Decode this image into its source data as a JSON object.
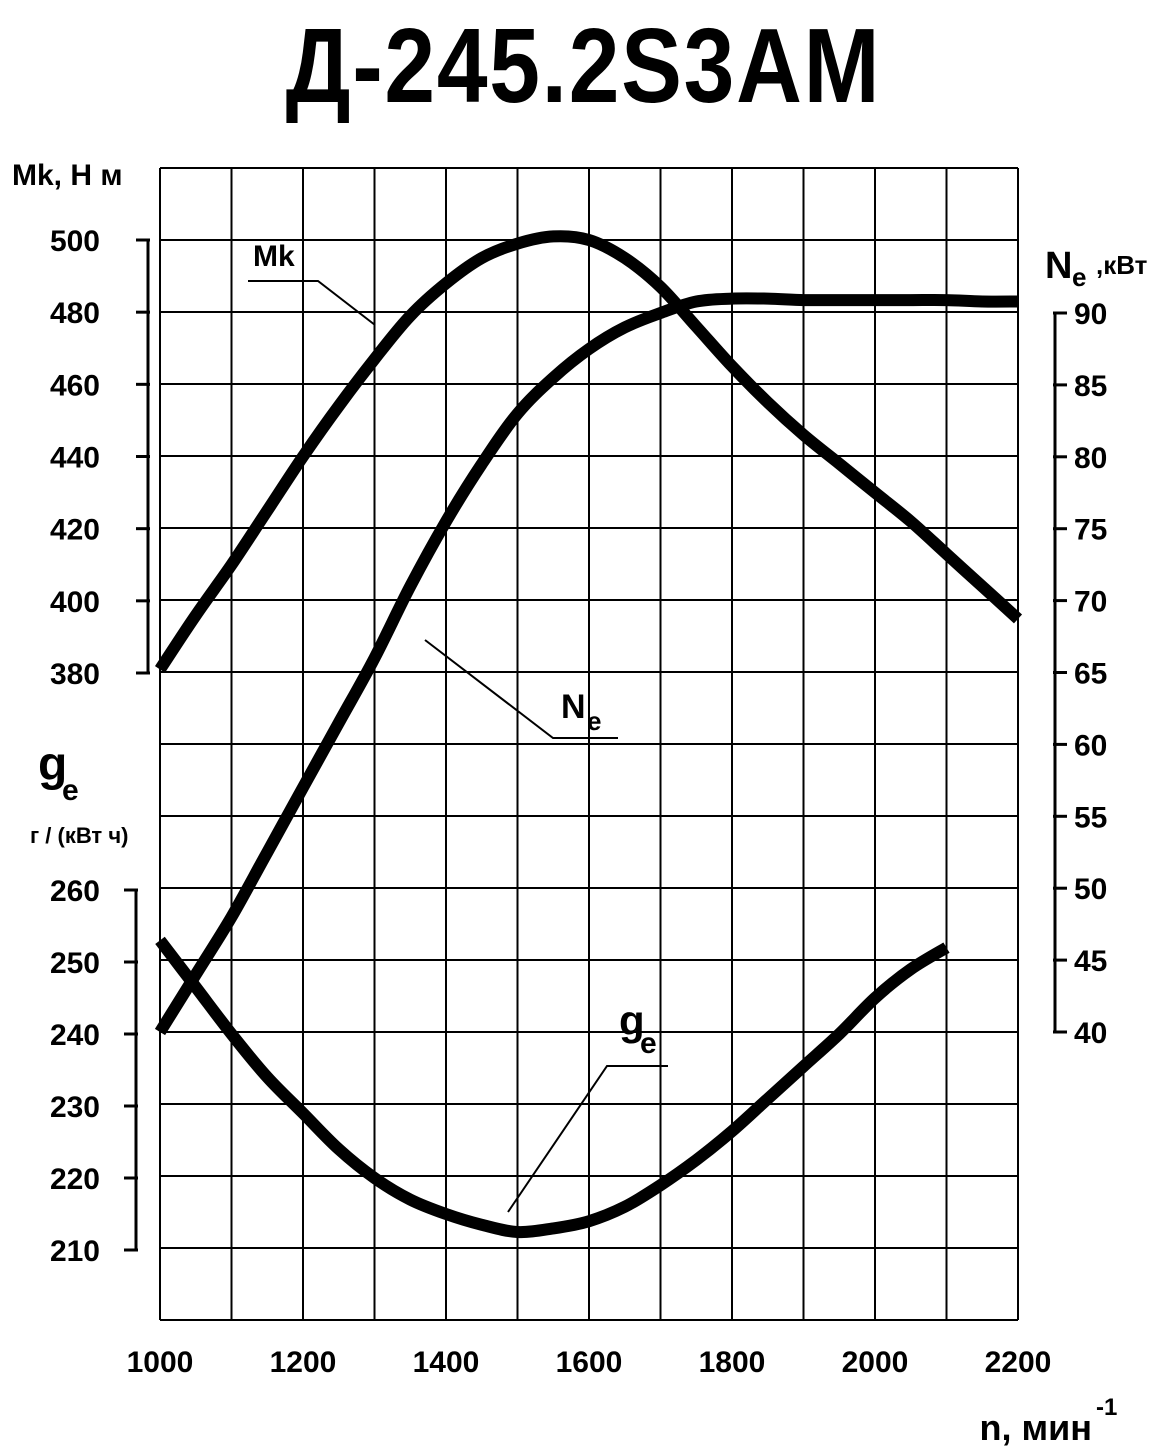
{
  "chart_data": {
    "type": "line",
    "title": "Д-245.2S3АМ",
    "x": {
      "label": "n, мин",
      "label_sup": "-1",
      "ticks": [
        1000,
        1200,
        1400,
        1600,
        1800,
        2000,
        2200
      ],
      "range": [
        1000,
        2200
      ]
    },
    "axes": {
      "torque": {
        "label": "Mk, Н м",
        "ticks": [
          380,
          400,
          420,
          440,
          460,
          480,
          500
        ],
        "range": [
          380,
          500
        ]
      },
      "power": {
        "label_main": "N",
        "label_sub": "e",
        "label_unit": ",кВт",
        "ticks": [
          40,
          45,
          50,
          55,
          60,
          65,
          70,
          75,
          80,
          85,
          90
        ],
        "range": [
          40,
          90
        ]
      },
      "consumption": {
        "label_main": "g",
        "label_sub": "e",
        "label_unit": "г / (кВт ч)",
        "ticks": [
          210,
          220,
          230,
          240,
          250,
          260
        ],
        "range": [
          210,
          260
        ]
      }
    },
    "series": [
      {
        "name": "Mk",
        "axis": "torque",
        "label": {
          "main": "Mk",
          "sub": ""
        },
        "points": [
          [
            1000,
            381
          ],
          [
            1050,
            396
          ],
          [
            1100,
            410
          ],
          [
            1150,
            425
          ],
          [
            1200,
            440
          ],
          [
            1250,
            454
          ],
          [
            1300,
            467
          ],
          [
            1350,
            479
          ],
          [
            1400,
            488
          ],
          [
            1450,
            495
          ],
          [
            1500,
            499
          ],
          [
            1550,
            501
          ],
          [
            1600,
            500
          ],
          [
            1650,
            495
          ],
          [
            1700,
            487
          ],
          [
            1750,
            476
          ],
          [
            1800,
            465
          ],
          [
            1850,
            455
          ],
          [
            1900,
            446
          ],
          [
            1950,
            438
          ],
          [
            2000,
            430
          ],
          [
            2050,
            422
          ],
          [
            2100,
            413
          ],
          [
            2150,
            404
          ],
          [
            2200,
            395
          ]
        ]
      },
      {
        "name": "Ne",
        "axis": "power",
        "label": {
          "main": "N",
          "sub": "e"
        },
        "points": [
          [
            1000,
            40
          ],
          [
            1050,
            44
          ],
          [
            1100,
            48
          ],
          [
            1150,
            52.5
          ],
          [
            1200,
            57
          ],
          [
            1250,
            61.5
          ],
          [
            1300,
            66
          ],
          [
            1350,
            71
          ],
          [
            1400,
            75.5
          ],
          [
            1450,
            79.5
          ],
          [
            1500,
            83
          ],
          [
            1550,
            85.5
          ],
          [
            1600,
            87.5
          ],
          [
            1650,
            89
          ],
          [
            1700,
            90
          ],
          [
            1750,
            90.8
          ],
          [
            1800,
            91
          ],
          [
            1850,
            91
          ],
          [
            1900,
            90.9
          ],
          [
            1950,
            90.9
          ],
          [
            2000,
            90.9
          ],
          [
            2050,
            90.9
          ],
          [
            2100,
            90.9
          ],
          [
            2150,
            90.8
          ],
          [
            2200,
            90.8
          ]
        ]
      },
      {
        "name": "ge",
        "axis": "consumption",
        "label": {
          "main": "g",
          "sub": "e"
        },
        "points": [
          [
            1000,
            253
          ],
          [
            1050,
            246.5
          ],
          [
            1100,
            240
          ],
          [
            1150,
            234
          ],
          [
            1200,
            229
          ],
          [
            1250,
            224
          ],
          [
            1300,
            220
          ],
          [
            1350,
            217
          ],
          [
            1400,
            215
          ],
          [
            1450,
            213.5
          ],
          [
            1500,
            212.5
          ],
          [
            1550,
            213
          ],
          [
            1600,
            214
          ],
          [
            1650,
            216
          ],
          [
            1700,
            219
          ],
          [
            1750,
            222.5
          ],
          [
            1800,
            226.5
          ],
          [
            1850,
            231
          ],
          [
            1900,
            235.5
          ],
          [
            1950,
            240
          ],
          [
            2000,
            245
          ],
          [
            2050,
            249
          ],
          [
            2100,
            252
          ]
        ]
      }
    ],
    "grid": true,
    "line_color": "#000000"
  }
}
